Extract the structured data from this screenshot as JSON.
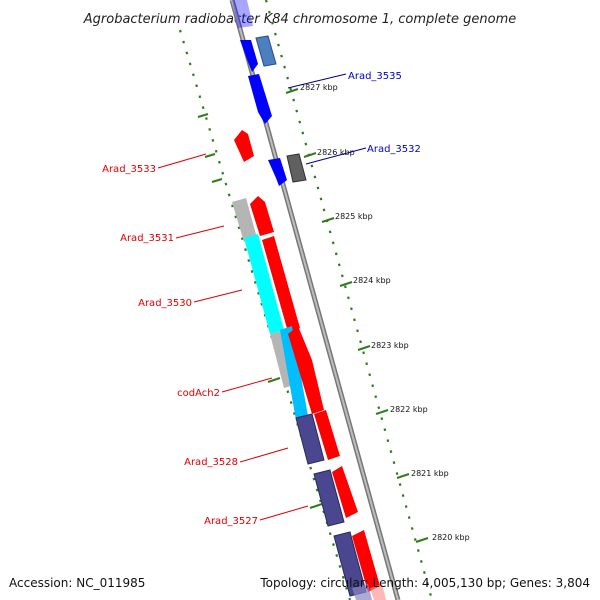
{
  "title": "Agrobacterium radiobacter K84 chromosome 1, complete genome",
  "footer": {
    "accession": "Accession: NC_011985",
    "summary": "Topology: circular; Length: 4,005,130 bp; Genes: 3,804"
  },
  "colors": {
    "forward_strand": "#0000ff",
    "reverse_strand": "#ff0000",
    "cds_grey": "#b5b5b5",
    "rna_cyan": "#00ffff",
    "dark_blue": "#4a4690",
    "steel_blue": "#5a8fc8",
    "dark_grey": "#606060",
    "ruler_green": "#2e7d1a",
    "backbone": "#888888"
  },
  "ruler": {
    "unit": "kbp",
    "ticks": [
      {
        "label": "2827 kbp"
      },
      {
        "label": "2826 kbp"
      },
      {
        "label": "2825 kbp"
      },
      {
        "label": "2824 kbp"
      },
      {
        "label": "2823 kbp"
      },
      {
        "label": "2822 kbp"
      },
      {
        "label": "2821 kbp"
      },
      {
        "label": "2820 kbp"
      }
    ]
  },
  "genes": [
    {
      "name": "Arad_3535",
      "color": "#0000cc"
    },
    {
      "name": "Arad_3532",
      "color": "#0000cc"
    },
    {
      "name": "Arad_3533",
      "color": "#dd0000"
    },
    {
      "name": "Arad_3531",
      "color": "#dd0000"
    },
    {
      "name": "Arad_3530",
      "color": "#dd0000"
    },
    {
      "name": "codAch2",
      "color": "#dd0000"
    },
    {
      "name": "Arad_3528",
      "color": "#dd0000"
    },
    {
      "name": "Arad_3527",
      "color": "#dd0000"
    }
  ]
}
